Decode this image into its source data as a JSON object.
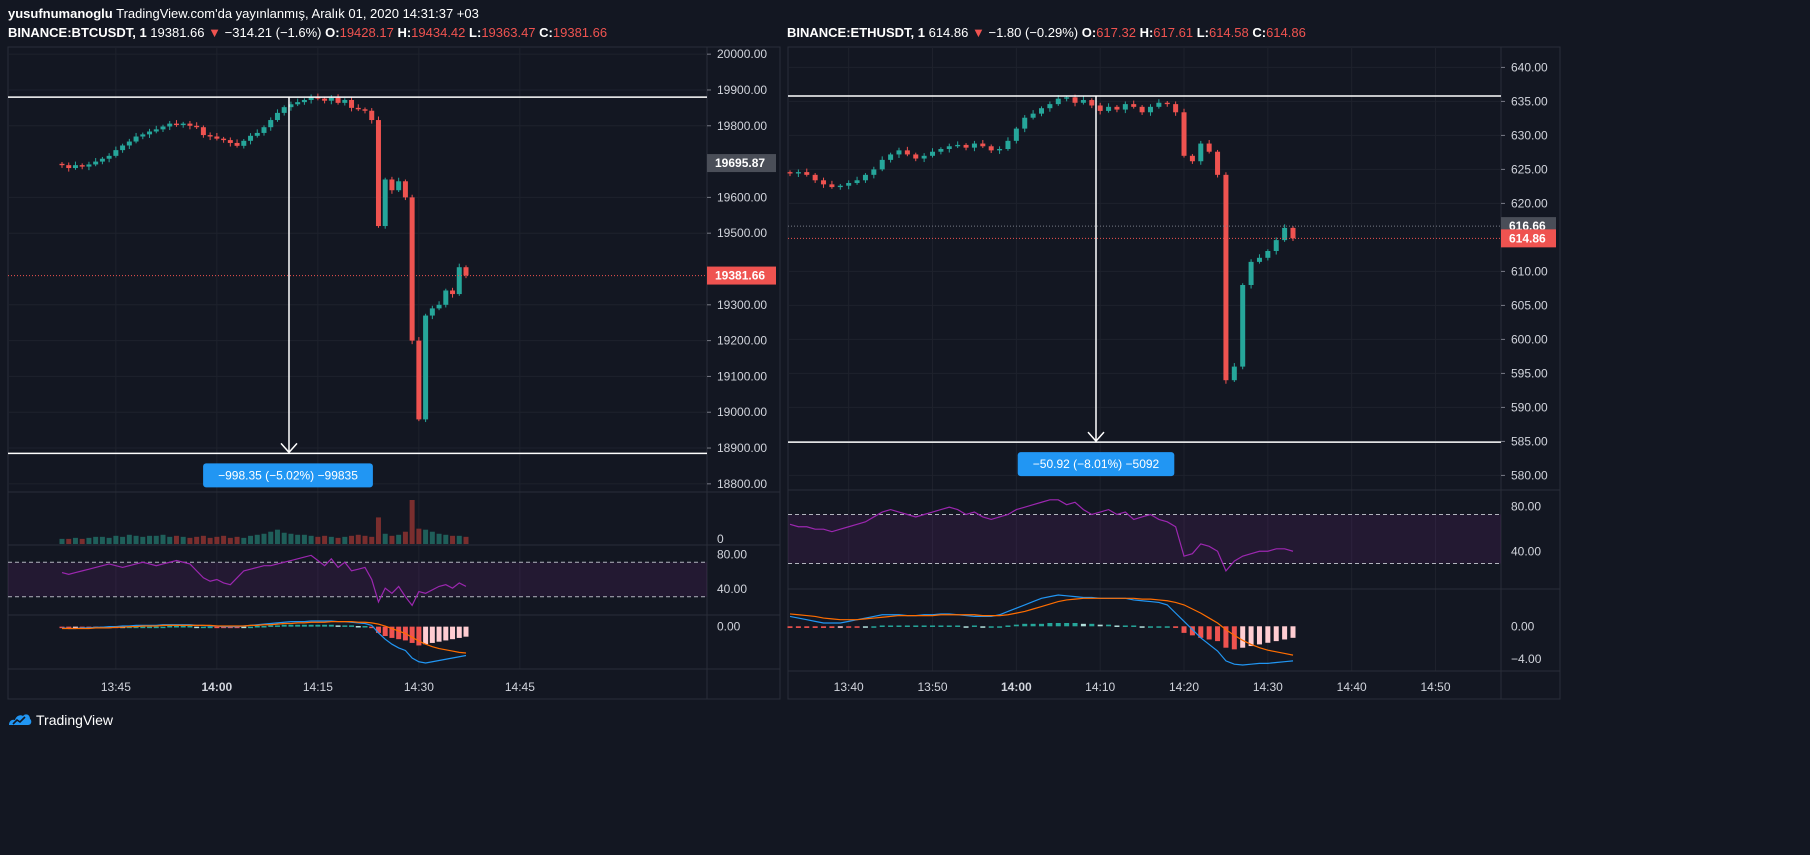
{
  "header": {
    "user": "yusufnumanoglu",
    "published": "TradingView.com'da yayınlanmış, Aralık 01, 2020 14:31:37 +03"
  },
  "footer": {
    "brand": "TradingView"
  },
  "colors": {
    "bg": "#131722",
    "up": "#26a69a",
    "down": "#ef5350",
    "grid": "#1e222d",
    "text": "#d1d4dc",
    "measure": "#2196f3",
    "rsi": "#9c27b0",
    "macd": "#2196f3",
    "signal": "#ff6d00"
  },
  "chart_data": [
    {
      "type": "candlestick",
      "legend": {
        "symbol": "BINANCE:BTCUSDT, 1",
        "last": "19381.66",
        "arrow": "▼",
        "change": "−314.21 (−1.6%)",
        "o_label": "O:",
        "o": "19428.17",
        "h_label": "H:",
        "h": "19434.42",
        "l_label": "L:",
        "l": "19363.47",
        "c_label": "C:",
        "c": "19381.66"
      },
      "ylim": [
        18780,
        20020
      ],
      "yticks": [
        "20000.00",
        "19900.00",
        "19800.00",
        "19600.00",
        "19500.00",
        "19300.00",
        "19200.00",
        "19100.00",
        "19000.00",
        "18900.00",
        "18800.00"
      ],
      "ytick_values": [
        20000,
        19900,
        19800,
        19600,
        19500,
        19300,
        19200,
        19100,
        19000,
        18900,
        18800
      ],
      "price_badges": [
        {
          "label": "19695.87",
          "value": 19695.87,
          "style": "gray"
        },
        {
          "label": "19381.66",
          "value": 19381.66,
          "style": "red"
        }
      ],
      "measure": {
        "top": 19880,
        "bottom": 18885,
        "label": "−998.35 (−5.02%) −99835"
      },
      "x_start": "13:37",
      "xticks": [
        {
          "label": "13:45",
          "minute": 8
        },
        {
          "label": "14:00",
          "minute": 23,
          "bold": true
        },
        {
          "label": "14:15",
          "minute": 38
        },
        {
          "label": "14:30",
          "minute": 53
        },
        {
          "label": "14:45",
          "minute": 68
        }
      ],
      "x_range": [
        0,
        75
      ],
      "closes": [
        19690,
        19682,
        19690,
        19686,
        19692,
        19700,
        19708,
        19716,
        19732,
        19745,
        19756,
        19770,
        19776,
        19784,
        19790,
        19798,
        19806,
        19802,
        19806,
        19800,
        19796,
        19774,
        19770,
        19764,
        19760,
        19752,
        19744,
        19758,
        19772,
        19780,
        19796,
        19816,
        19836,
        19852,
        19860,
        19866,
        19872,
        19880,
        19876,
        19870,
        19878,
        19864,
        19872,
        19850,
        19846,
        19842,
        19816,
        19520,
        19650,
        19620,
        19645,
        19600,
        19200,
        18980,
        19270,
        19290,
        19300,
        19340,
        19330,
        19405,
        19382
      ],
      "volume": {
        "values": [
          5,
          5,
          6,
          5,
          6,
          7,
          7,
          6,
          8,
          7,
          9,
          8,
          7,
          8,
          8,
          9,
          7,
          8,
          7,
          6,
          7,
          8,
          6,
          7,
          8,
          6,
          7,
          6,
          8,
          9,
          10,
          12,
          14,
          11,
          10,
          9,
          9,
          8,
          7,
          8,
          7,
          6,
          7,
          8,
          9,
          8,
          7,
          26,
          10,
          8,
          9,
          12,
          43,
          15,
          14,
          12,
          10,
          9,
          8,
          8,
          7
        ],
        "zero_label": "0"
      },
      "rsi": {
        "label_top": "80.00",
        "label_bottom": "40.00",
        "top": 70,
        "bottom": 30,
        "values": [
          58,
          56,
          58,
          60,
          62,
          64,
          66,
          68,
          66,
          64,
          66,
          68,
          70,
          68,
          66,
          68,
          70,
          72,
          70,
          68,
          60,
          52,
          48,
          50,
          46,
          44,
          52,
          60,
          62,
          64,
          66,
          66,
          68,
          70,
          72,
          74,
          76,
          78,
          72,
          66,
          74,
          64,
          70,
          60,
          62,
          64,
          50,
          24,
          40,
          34,
          42,
          30,
          20,
          36,
          34,
          38,
          42,
          44,
          40,
          46,
          42
        ]
      },
      "macd": {
        "zero_label": "0.00",
        "hist": [
          -2,
          -2,
          -1,
          -1,
          -1,
          -1,
          -1,
          -1,
          -1,
          0,
          0,
          0,
          0,
          0,
          0,
          0,
          1,
          1,
          1,
          1,
          0,
          0,
          0,
          -1,
          -1,
          -1,
          -1,
          0,
          0,
          1,
          1,
          2,
          2,
          3,
          3,
          3,
          3,
          3,
          3,
          3,
          3,
          2,
          2,
          2,
          1,
          1,
          -1,
          -10,
          -15,
          -18,
          -20,
          -22,
          -26,
          -30,
          -28,
          -26,
          -24,
          -22,
          -20,
          -18,
          -16
        ],
        "macd": [
          -2,
          -3,
          -3,
          -2,
          -2,
          -1,
          -1,
          0,
          0,
          1,
          1,
          2,
          2,
          2,
          2,
          3,
          3,
          3,
          3,
          3,
          2,
          2,
          1,
          1,
          0,
          0,
          0,
          1,
          2,
          3,
          4,
          5,
          6,
          7,
          8,
          8,
          8,
          9,
          9,
          9,
          9,
          8,
          8,
          7,
          6,
          5,
          2,
          -10,
          -20,
          -28,
          -34,
          -38,
          -50,
          -56,
          -58,
          -56,
          -54,
          -52,
          -50,
          -48,
          -46
        ],
        "signal": [
          -3,
          -3,
          -3,
          -3,
          -3,
          -2,
          -2,
          -2,
          -1,
          -1,
          0,
          0,
          1,
          1,
          1,
          2,
          2,
          2,
          2,
          2,
          2,
          2,
          2,
          1,
          1,
          1,
          1,
          1,
          2,
          2,
          3,
          3,
          4,
          5,
          5,
          6,
          6,
          7,
          7,
          7,
          8,
          8,
          8,
          8,
          7,
          7,
          6,
          4,
          1,
          -3,
          -7,
          -11,
          -17,
          -23,
          -28,
          -32,
          -35,
          -37,
          -39,
          -41,
          -42
        ]
      }
    },
    {
      "type": "candlestick",
      "legend": {
        "symbol": "BINANCE:ETHUSDT, 1",
        "last": "614.86",
        "arrow": "▼",
        "change": "−1.80 (−0.29%)",
        "o_label": "O:",
        "o": "617.32",
        "h_label": "H:",
        "h": "617.61",
        "l_label": "L:",
        "l": "614.58",
        "c_label": "C:",
        "c": "614.86"
      },
      "ylim": [
        578,
        643
      ],
      "yticks": [
        "640.00",
        "635.00",
        "630.00",
        "625.00",
        "620.00",
        "610.00",
        "605.00",
        "600.00",
        "595.00",
        "590.00",
        "585.00",
        "580.00"
      ],
      "ytick_values": [
        640,
        635,
        630,
        625,
        620,
        610,
        605,
        600,
        595,
        590,
        585,
        580
      ],
      "price_badges": [
        {
          "label": "616.66",
          "value": 616.66,
          "style": "gray"
        },
        {
          "label": "614.86",
          "value": 614.86,
          "style": "red"
        }
      ],
      "measure": {
        "top": 635.8,
        "bottom": 584.9,
        "label": "−50.92 (−8.01%) −5092"
      },
      "x_start": "13:33",
      "xticks": [
        {
          "label": "13:40",
          "minute": 7
        },
        {
          "label": "13:50",
          "minute": 17
        },
        {
          "label": "14:00",
          "minute": 27,
          "bold": true
        },
        {
          "label": "14:10",
          "minute": 37
        },
        {
          "label": "14:20",
          "minute": 47
        },
        {
          "label": "14:30",
          "minute": 57
        },
        {
          "label": "14:40",
          "minute": 67
        },
        {
          "label": "14:50",
          "minute": 77
        }
      ],
      "x_range": [
        0,
        84
      ],
      "closes": [
        624.4,
        624.6,
        624.2,
        623.4,
        622.8,
        622.4,
        622.6,
        623,
        623.4,
        624.2,
        625,
        626.4,
        627.2,
        627.8,
        627.2,
        626.6,
        627,
        627.6,
        628,
        628.4,
        628.6,
        628.2,
        628.8,
        628.4,
        627.8,
        628,
        629.2,
        631,
        632.6,
        633.2,
        634,
        634.6,
        635.4,
        635.6,
        634.8,
        635.2,
        634.4,
        633.6,
        634.2,
        633.8,
        634.6,
        634.2,
        633.4,
        634.2,
        634.8,
        634.6,
        633.4,
        627,
        626.2,
        628.8,
        627.6,
        624.2,
        594,
        596,
        608,
        611.4,
        612,
        613,
        614.6,
        616.4,
        614.86
      ],
      "rsi": {
        "label_top": "80.00",
        "label_bottom": "40.00",
        "top": 70,
        "bottom": 30,
        "values": [
          62,
          60,
          60,
          58,
          58,
          56,
          58,
          60,
          62,
          64,
          68,
          72,
          74,
          72,
          70,
          68,
          70,
          72,
          74,
          76,
          74,
          70,
          72,
          68,
          66,
          68,
          70,
          74,
          76,
          78,
          80,
          82,
          82,
          78,
          80,
          74,
          70,
          72,
          74,
          70,
          72,
          66,
          68,
          70,
          66,
          64,
          60,
          36,
          38,
          46,
          44,
          40,
          24,
          32,
          36,
          38,
          40,
          40,
          42,
          42,
          40
        ]
      },
      "macd": {
        "zero_label": "0.00",
        "hist": [
          -0.2,
          -0.2,
          -0.2,
          -0.2,
          -0.2,
          -0.2,
          -0.1,
          -0.1,
          -0.1,
          0,
          0,
          0.1,
          0.1,
          0.1,
          0.1,
          0.1,
          0.1,
          0.1,
          0.1,
          0.1,
          0.1,
          0,
          0.1,
          0,
          0,
          0,
          0.1,
          0.2,
          0.3,
          0.3,
          0.3,
          0.4,
          0.4,
          0.4,
          0.4,
          0.3,
          0.3,
          0.2,
          0.2,
          0.1,
          0.1,
          0.1,
          0,
          0,
          0,
          0,
          -0.2,
          -0.8,
          -1.1,
          -1.4,
          -1.6,
          -1.8,
          -2.6,
          -2.8,
          -2.6,
          -2.4,
          -2.2,
          -2,
          -1.8,
          -1.6,
          -1.4
        ],
        "macd": [
          1.2,
          1,
          0.8,
          0.6,
          0.4,
          0.4,
          0.4,
          0.6,
          0.8,
          1,
          1.2,
          1.4,
          1.4,
          1.4,
          1.3,
          1.3,
          1.4,
          1.4,
          1.5,
          1.5,
          1.4,
          1.3,
          1.2,
          1.2,
          1.2,
          1.4,
          1.8,
          2.2,
          2.6,
          3,
          3.4,
          3.6,
          3.8,
          3.7,
          3.6,
          3.5,
          3.5,
          3.4,
          3.4,
          3.4,
          3.4,
          3.2,
          3.1,
          3,
          2.9,
          2.6,
          1.6,
          0.6,
          -0.4,
          -1.4,
          -2.2,
          -3,
          -4.2,
          -4.6,
          -4.7,
          -4.6,
          -4.5,
          -4.5,
          -4.4,
          -4.3,
          -4.2
        ],
        "signal": [
          1.5,
          1.4,
          1.3,
          1.2,
          1,
          0.9,
          0.8,
          0.8,
          0.8,
          0.9,
          1,
          1.1,
          1.2,
          1.3,
          1.3,
          1.3,
          1.3,
          1.3,
          1.4,
          1.4,
          1.4,
          1.4,
          1.4,
          1.3,
          1.3,
          1.3,
          1.4,
          1.6,
          1.8,
          2.1,
          2.4,
          2.7,
          3,
          3.2,
          3.3,
          3.4,
          3.4,
          3.4,
          3.4,
          3.4,
          3.4,
          3.4,
          3.3,
          3.3,
          3.2,
          3.1,
          2.9,
          2.6,
          2.1,
          1.6,
          1,
          0.4,
          -0.4,
          -1.1,
          -1.7,
          -2.2,
          -2.6,
          -2.9,
          -3.1,
          -3.3,
          -3.5
        ]
      }
    }
  ]
}
